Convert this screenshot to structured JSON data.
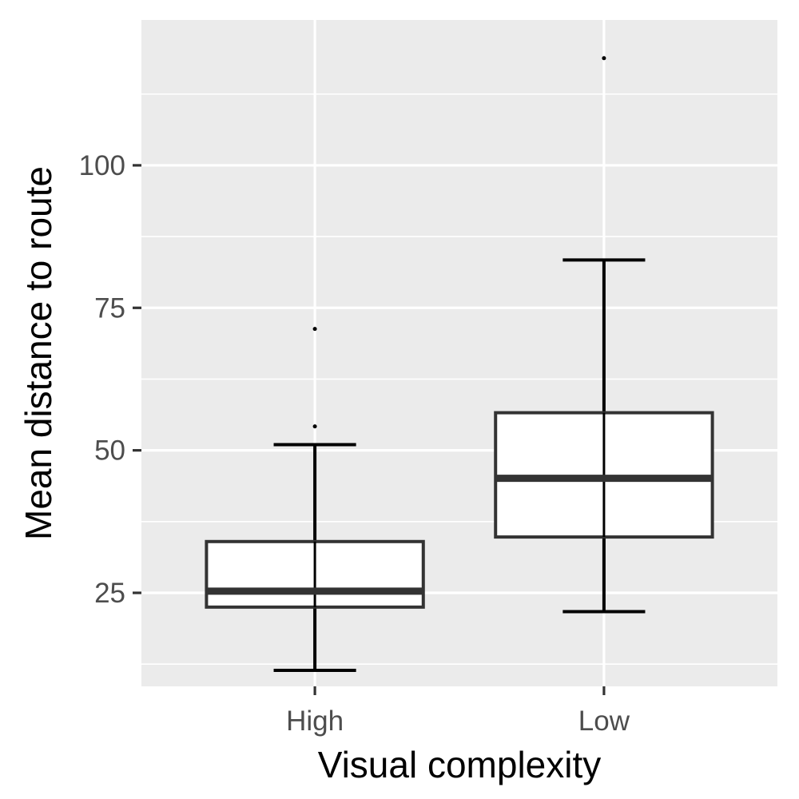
{
  "chart_data": {
    "type": "boxplot",
    "title": "",
    "xlabel": "Visual complexity",
    "ylabel": "Mean distance to route",
    "categories": [
      "High",
      "Low"
    ],
    "ylim": [
      8.6,
      125.5
    ],
    "y_ticks": [
      25,
      50,
      75,
      100
    ],
    "y_ticks_labels": [
      "25",
      "50",
      "75",
      "100"
    ],
    "y_minor": [
      12.5,
      37.5,
      62.5,
      87.5,
      112.5
    ],
    "grid": true,
    "boxes": [
      {
        "category": "High",
        "q1": 22.5,
        "median": 25.3,
        "q3": 34.0,
        "whisker_low": 11.4,
        "whisker_high": 51.0,
        "outliers": [
          54.2,
          71.3
        ]
      },
      {
        "category": "Low",
        "q1": 34.8,
        "median": 45.1,
        "q3": 56.6,
        "whisker_low": 21.7,
        "whisker_high": 83.4,
        "outliers": [
          118.8
        ]
      }
    ],
    "colors": {
      "panel": "#ebebeb",
      "grid": "#ffffff",
      "box_fill": "#ffffff",
      "box_line": "#333333",
      "whisker": "#000000"
    }
  }
}
